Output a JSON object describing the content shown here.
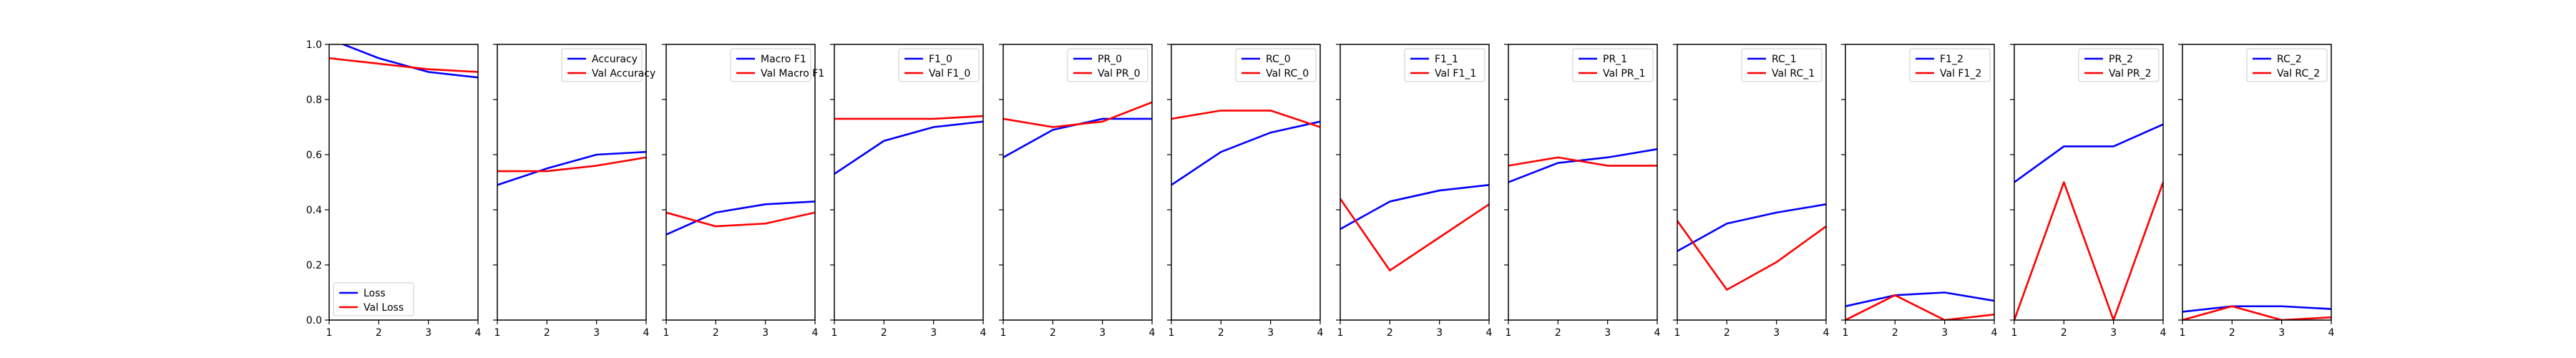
{
  "colors": {
    "train": "#0000ff",
    "val": "#ff0000"
  },
  "chart_data": [
    {
      "type": "line",
      "x": [
        1,
        2,
        3,
        4
      ],
      "xlim": [
        1,
        4
      ],
      "ylim": [
        0,
        1
      ],
      "xticks": [
        "1",
        "2",
        "3",
        "4"
      ],
      "yticks": [
        "0.0",
        "0.2",
        "0.4",
        "0.6",
        "0.8",
        "1.0"
      ],
      "legend": "lower-left",
      "series": [
        {
          "name": "Loss",
          "values": [
            1.02,
            0.95,
            0.9,
            0.88
          ]
        },
        {
          "name": "Val Loss",
          "values": [
            0.95,
            0.93,
            0.91,
            0.9
          ]
        }
      ]
    },
    {
      "type": "line",
      "x": [
        1,
        2,
        3,
        4
      ],
      "xlim": [
        1,
        4
      ],
      "ylim": [
        0,
        1
      ],
      "xticks": [
        "1",
        "2",
        "3",
        "4"
      ],
      "legend": "upper-right",
      "series": [
        {
          "name": "Accuracy",
          "values": [
            0.49,
            0.55,
            0.6,
            0.61
          ]
        },
        {
          "name": "Val Accuracy",
          "values": [
            0.54,
            0.54,
            0.56,
            0.59
          ]
        }
      ]
    },
    {
      "type": "line",
      "x": [
        1,
        2,
        3,
        4
      ],
      "xlim": [
        1,
        4
      ],
      "ylim": [
        0,
        1
      ],
      "xticks": [
        "1",
        "2",
        "3",
        "4"
      ],
      "legend": "upper-right",
      "series": [
        {
          "name": "Macro F1",
          "values": [
            0.31,
            0.39,
            0.42,
            0.43
          ]
        },
        {
          "name": "Val Macro F1",
          "values": [
            0.39,
            0.34,
            0.35,
            0.39
          ]
        }
      ]
    },
    {
      "type": "line",
      "x": [
        1,
        2,
        3,
        4
      ],
      "xlim": [
        1,
        4
      ],
      "ylim": [
        0,
        1
      ],
      "xticks": [
        "1",
        "2",
        "3",
        "4"
      ],
      "legend": "upper-right",
      "series": [
        {
          "name": "F1_0",
          "values": [
            0.53,
            0.65,
            0.7,
            0.72
          ]
        },
        {
          "name": "Val F1_0",
          "values": [
            0.73,
            0.73,
            0.73,
            0.74
          ]
        }
      ]
    },
    {
      "type": "line",
      "x": [
        1,
        2,
        3,
        4
      ],
      "xlim": [
        1,
        4
      ],
      "ylim": [
        0,
        1
      ],
      "xticks": [
        "1",
        "2",
        "3",
        "4"
      ],
      "legend": "upper-right",
      "series": [
        {
          "name": "PR_0",
          "values": [
            0.59,
            0.69,
            0.73,
            0.73
          ]
        },
        {
          "name": "Val PR_0",
          "values": [
            0.73,
            0.7,
            0.72,
            0.79
          ]
        }
      ]
    },
    {
      "type": "line",
      "x": [
        1,
        2,
        3,
        4
      ],
      "xlim": [
        1,
        4
      ],
      "ylim": [
        0,
        1
      ],
      "xticks": [
        "1",
        "2",
        "3",
        "4"
      ],
      "legend": "upper-right",
      "series": [
        {
          "name": "RC_0",
          "values": [
            0.49,
            0.61,
            0.68,
            0.72
          ]
        },
        {
          "name": "Val RC_0",
          "values": [
            0.73,
            0.76,
            0.76,
            0.7
          ]
        }
      ]
    },
    {
      "type": "line",
      "x": [
        1,
        2,
        3,
        4
      ],
      "xlim": [
        1,
        4
      ],
      "ylim": [
        0,
        1
      ],
      "xticks": [
        "1",
        "2",
        "3",
        "4"
      ],
      "legend": "upper-right",
      "series": [
        {
          "name": "F1_1",
          "values": [
            0.33,
            0.43,
            0.47,
            0.49
          ]
        },
        {
          "name": "Val F1_1",
          "values": [
            0.44,
            0.18,
            0.3,
            0.42
          ]
        }
      ]
    },
    {
      "type": "line",
      "x": [
        1,
        2,
        3,
        4
      ],
      "xlim": [
        1,
        4
      ],
      "ylim": [
        0,
        1
      ],
      "xticks": [
        "1",
        "2",
        "3",
        "4"
      ],
      "legend": "upper-right",
      "series": [
        {
          "name": "PR_1",
          "values": [
            0.5,
            0.57,
            0.59,
            0.62
          ]
        },
        {
          "name": "Val PR_1",
          "values": [
            0.56,
            0.59,
            0.56,
            0.56
          ]
        }
      ]
    },
    {
      "type": "line",
      "x": [
        1,
        2,
        3,
        4
      ],
      "xlim": [
        1,
        4
      ],
      "ylim": [
        0,
        1
      ],
      "xticks": [
        "1",
        "2",
        "3",
        "4"
      ],
      "legend": "upper-right",
      "series": [
        {
          "name": "RC_1",
          "values": [
            0.25,
            0.35,
            0.39,
            0.42
          ]
        },
        {
          "name": "Val RC_1",
          "values": [
            0.36,
            0.11,
            0.21,
            0.34
          ]
        }
      ]
    },
    {
      "type": "line",
      "x": [
        1,
        2,
        3,
        4
      ],
      "xlim": [
        1,
        4
      ],
      "ylim": [
        0,
        1
      ],
      "xticks": [
        "1",
        "2",
        "3",
        "4"
      ],
      "legend": "upper-right",
      "series": [
        {
          "name": "F1_2",
          "values": [
            0.05,
            0.09,
            0.1,
            0.07
          ]
        },
        {
          "name": "Val F1_2",
          "values": [
            0.0,
            0.09,
            0.0,
            0.02
          ]
        }
      ]
    },
    {
      "type": "line",
      "x": [
        1,
        2,
        3,
        4
      ],
      "xlim": [
        1,
        4
      ],
      "ylim": [
        0,
        1
      ],
      "xticks": [
        "1",
        "2",
        "3",
        "4"
      ],
      "legend": "upper-right",
      "series": [
        {
          "name": "PR_2",
          "values": [
            0.5,
            0.63,
            0.63,
            0.71
          ]
        },
        {
          "name": "Val PR_2",
          "values": [
            0.0,
            0.5,
            0.0,
            0.5
          ]
        }
      ]
    },
    {
      "type": "line",
      "x": [
        1,
        2,
        3,
        4
      ],
      "xlim": [
        1,
        4
      ],
      "ylim": [
        0,
        1
      ],
      "xticks": [
        "1",
        "2",
        "3",
        "4"
      ],
      "legend": "upper-right",
      "series": [
        {
          "name": "RC_2",
          "values": [
            0.03,
            0.05,
            0.05,
            0.04
          ]
        },
        {
          "name": "Val RC_2",
          "values": [
            0.0,
            0.05,
            0.0,
            0.01
          ]
        }
      ]
    }
  ]
}
